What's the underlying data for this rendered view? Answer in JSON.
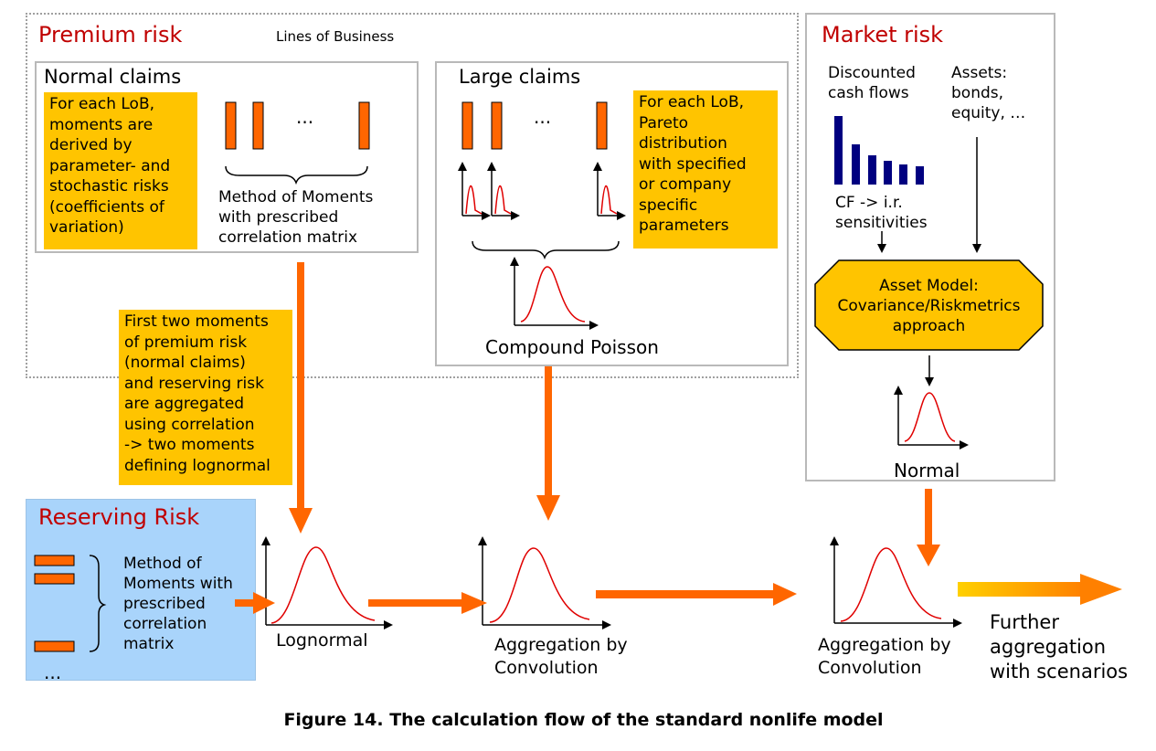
{
  "premium": {
    "title": "Premium risk",
    "lob_label": "Lines of Business",
    "normal": {
      "title": "Normal claims",
      "note": "For each LoB,\nmoments are\nderived by\nparameter- and\nstochastic risks\n(coefficients of\nvariation)",
      "ellipsis": "...",
      "method": "Method of Moments\nwith prescribed\ncorrelation matrix"
    },
    "large": {
      "title": "Large claims",
      "ellipsis": "...",
      "note": "For each LoB,\nPareto\ndistribution\nwith specified\nor company\nspecific\nparameters",
      "result": "Compound Poisson"
    }
  },
  "aggregation_note": "First two moments\nof premium risk\n(normal claims)\nand reserving risk\nare aggregated\nusing correlation\n-> two moments\ndefining lognormal",
  "market": {
    "title": "Market risk",
    "cashflows": "Discounted\ncash flows",
    "assets": "Assets:\nbonds,\nequity, …",
    "sensitivities": "CF -> i.r.\nsensitivities",
    "asset_model": "Asset Model:\nCovariance/Riskmetrics\napproach",
    "result": "Normal"
  },
  "reserving": {
    "title": "Reserving Risk",
    "method": "Method of\nMoments with\nprescribed\ncorrelation\nmatrix",
    "ellipsis": "..."
  },
  "flow": {
    "lognormal": "Lognormal",
    "convolution1": "Aggregation by\nConvolution",
    "convolution2": "Aggregation by\nConvolution",
    "further": "Further\naggregation\nwith scenarios"
  },
  "caption": "Figure 14. The calculation flow of the standard nonlife model",
  "colors": {
    "orange": "#ff6600",
    "yellow": "#ffc400",
    "red_title": "#c00000",
    "blue_panel": "#a9d4fb",
    "navy_bars": "#000080",
    "curve_red": "#e00000"
  }
}
